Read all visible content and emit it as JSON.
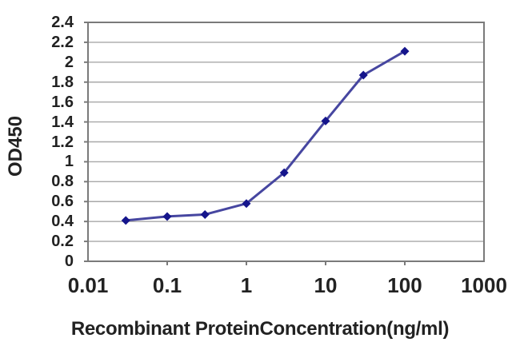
{
  "chart_data": {
    "type": "line",
    "title": "",
    "xlabel": "Recombinant ProteinConcentration(ng/ml)",
    "ylabel": "OD450",
    "x_scale": "log",
    "xlim": [
      0.01,
      1000
    ],
    "ylim": [
      0,
      2.4
    ],
    "x": [
      0.03,
      0.1,
      0.3,
      1,
      3,
      10,
      30,
      100
    ],
    "y": [
      0.41,
      0.45,
      0.47,
      0.58,
      0.89,
      1.41,
      1.87,
      2.11
    ],
    "x_tick_values": [
      0.01,
      0.1,
      1,
      10,
      100,
      1000
    ],
    "x_tick_labels": [
      "0.01",
      "0.1",
      "1",
      "10",
      "100",
      "1000"
    ],
    "y_tick_values": [
      0,
      0.2,
      0.4,
      0.6,
      0.8,
      1,
      1.2,
      1.4,
      1.6,
      1.8,
      2,
      2.2,
      2.4
    ],
    "y_tick_labels": [
      "0",
      "0.2",
      "0.4",
      "0.6",
      "0.8",
      "1",
      "1.2",
      "1.4",
      "1.6",
      "1.8",
      "2",
      "2.2",
      "2.4"
    ],
    "grid": true,
    "legend": "none",
    "marker": "diamond",
    "colors": {
      "line": "#4646a0",
      "marker": "#15158c",
      "grid": "#a8a8a8",
      "axis": "#7a7a7a",
      "text": "#222222",
      "background": "#ffffff"
    }
  }
}
